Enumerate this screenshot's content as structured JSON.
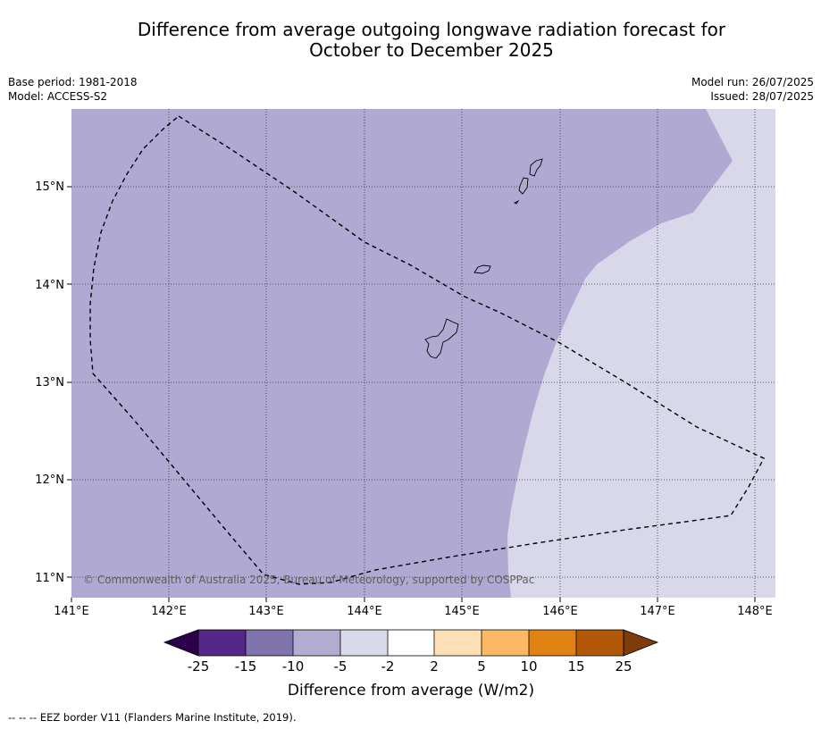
{
  "title": {
    "line1": "Difference from average outgoing longwave radiation forecast for",
    "line2": "October to December 2025"
  },
  "meta_left": {
    "base_period": "Base period: 1981-2018",
    "model": "Model: ACCESS-S2"
  },
  "meta_right": {
    "model_run": "Model run: 26/07/2025",
    "issued": "Issued: 28/07/2025"
  },
  "map": {
    "longitude_labels": [
      "141°E",
      "142°E",
      "143°E",
      "144°E",
      "145°E",
      "146°E",
      "147°E",
      "148°E"
    ],
    "latitude_labels": [
      "15°N",
      "14°N",
      "13°N",
      "12°N",
      "11°N"
    ],
    "copyright": "© Commonwealth of Australia 2025, Bureau of Meteorology, supported by COSPPac",
    "category_colors": {
      "-10_to_-5": "#b0aad3",
      "-5_to_-2": "#d8d8ea"
    }
  },
  "colorbar": {
    "title": "Difference from average (W/m2)",
    "tick_labels": [
      "-25",
      "-15",
      "-10",
      "-5",
      "-2",
      "2",
      "5",
      "10",
      "15",
      "25"
    ],
    "colors": [
      "#2d004b",
      "#542788",
      "#8073ac",
      "#b2abd2",
      "#d8daeb",
      "#ffffff",
      "#fee0b6",
      "#fdb863",
      "#e08214",
      "#b35806",
      "#7f3b08"
    ]
  },
  "footer_note": "--  --  -- EEZ border V11 (Flanders Marine Institute, 2019)."
}
